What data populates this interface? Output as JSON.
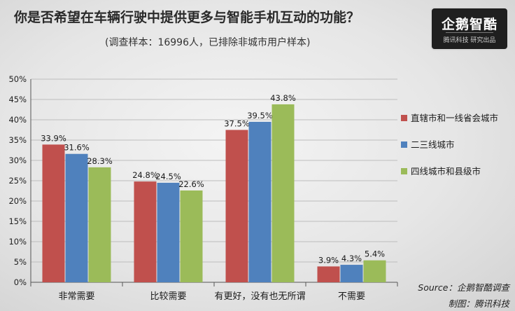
{
  "header": {
    "title": "你是否希望在车辆行驶中提供更多与智能手机互动的功能？",
    "subtitle": "(调查样本：16996人，已排除非城市用户样本)"
  },
  "logo": {
    "name": "企鹅智酷",
    "tagline": "腾讯科技  研究出品"
  },
  "footer": {
    "source": "Source：企鹅智酷调查",
    "credit": "制图：腾讯科技"
  },
  "chart_data": {
    "type": "bar",
    "categories": [
      "非常需要",
      "比较需要",
      "有更好，没有也无所谓",
      "不需要"
    ],
    "series": [
      {
        "name": "直辖市和一线省会城市",
        "color": "#c0504d",
        "values": [
          33.9,
          24.8,
          37.5,
          3.9
        ]
      },
      {
        "name": "二三线城市",
        "color": "#4f81bd",
        "values": [
          31.6,
          24.5,
          39.5,
          4.3
        ]
      },
      {
        "name": "四线城市和县级市",
        "color": "#9bbb59",
        "values": [
          28.3,
          22.6,
          43.8,
          5.4
        ]
      }
    ],
    "value_suffix": "%",
    "ylim": [
      0,
      50
    ],
    "yticks": [
      0,
      5,
      10,
      15,
      20,
      25,
      30,
      35,
      40,
      45,
      50
    ],
    "ytick_labels": [
      "0%",
      "5%",
      "10%",
      "15%",
      "20%",
      "25%",
      "30%",
      "35%",
      "40%",
      "45%",
      "50%"
    ],
    "grid": true,
    "legend": "right"
  }
}
